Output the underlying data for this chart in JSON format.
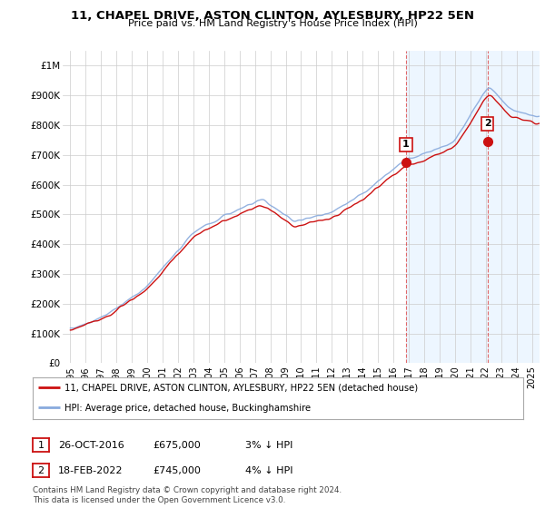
{
  "title": "11, CHAPEL DRIVE, ASTON CLINTON, AYLESBURY, HP22 5EN",
  "subtitle": "Price paid vs. HM Land Registry's House Price Index (HPI)",
  "ylabel_ticks": [
    "£0",
    "£100K",
    "£200K",
    "£300K",
    "£400K",
    "£500K",
    "£600K",
    "£700K",
    "£800K",
    "£900K",
    "£1M"
  ],
  "ytick_values": [
    0,
    100000,
    200000,
    300000,
    400000,
    500000,
    600000,
    700000,
    800000,
    900000,
    1000000
  ],
  "ylim": [
    0,
    1050000
  ],
  "xlim_start": 1994.5,
  "xlim_end": 2025.5,
  "hpi_color": "#88aadd",
  "price_color": "#cc1111",
  "vline_color": "#dd4444",
  "shade_color": "#ddeeff",
  "shade_alpha": 0.5,
  "sale1_x": 2016.82,
  "sale1_y": 675000,
  "sale1_label": "1",
  "sale2_x": 2022.12,
  "sale2_y": 745000,
  "sale2_label": "2",
  "legend_line1": "11, CHAPEL DRIVE, ASTON CLINTON, AYLESBURY, HP22 5EN (detached house)",
  "legend_line2": "HPI: Average price, detached house, Buckinghamshire",
  "table_row1_num": "1",
  "table_row1_date": "26-OCT-2016",
  "table_row1_price": "£675,000",
  "table_row1_hpi": "3% ↓ HPI",
  "table_row2_num": "2",
  "table_row2_date": "18-FEB-2022",
  "table_row2_price": "£745,000",
  "table_row2_hpi": "4% ↓ HPI",
  "footnote": "Contains HM Land Registry data © Crown copyright and database right 2024.\nThis data is licensed under the Open Government Licence v3.0.",
  "background_color": "#ffffff",
  "grid_color": "#cccccc"
}
